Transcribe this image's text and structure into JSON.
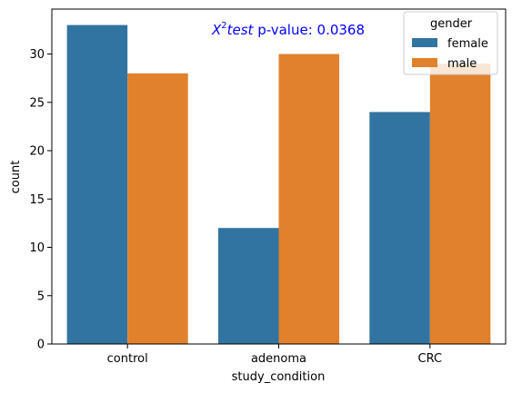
{
  "chart_data": {
    "type": "bar",
    "categories": [
      "control",
      "adenoma",
      "CRC"
    ],
    "series": [
      {
        "name": "female",
        "values": [
          33,
          12,
          24
        ],
        "color": "#3274a1"
      },
      {
        "name": "male",
        "values": [
          28,
          30,
          29
        ],
        "color": "#e1812c"
      }
    ],
    "xlabel": "study_condition",
    "ylabel": "count",
    "ylim": [
      0,
      34.65
    ],
    "yticks": [
      "0",
      "5",
      "10",
      "15",
      "20",
      "25",
      "30"
    ],
    "grid": false,
    "legend": {
      "title": "gender",
      "placement": "top-right"
    },
    "annotation": {
      "test_var": "X",
      "test_sup": "2",
      "test_word": "test",
      "text": " p-value: 0.0368",
      "color": "#0000ff"
    }
  }
}
